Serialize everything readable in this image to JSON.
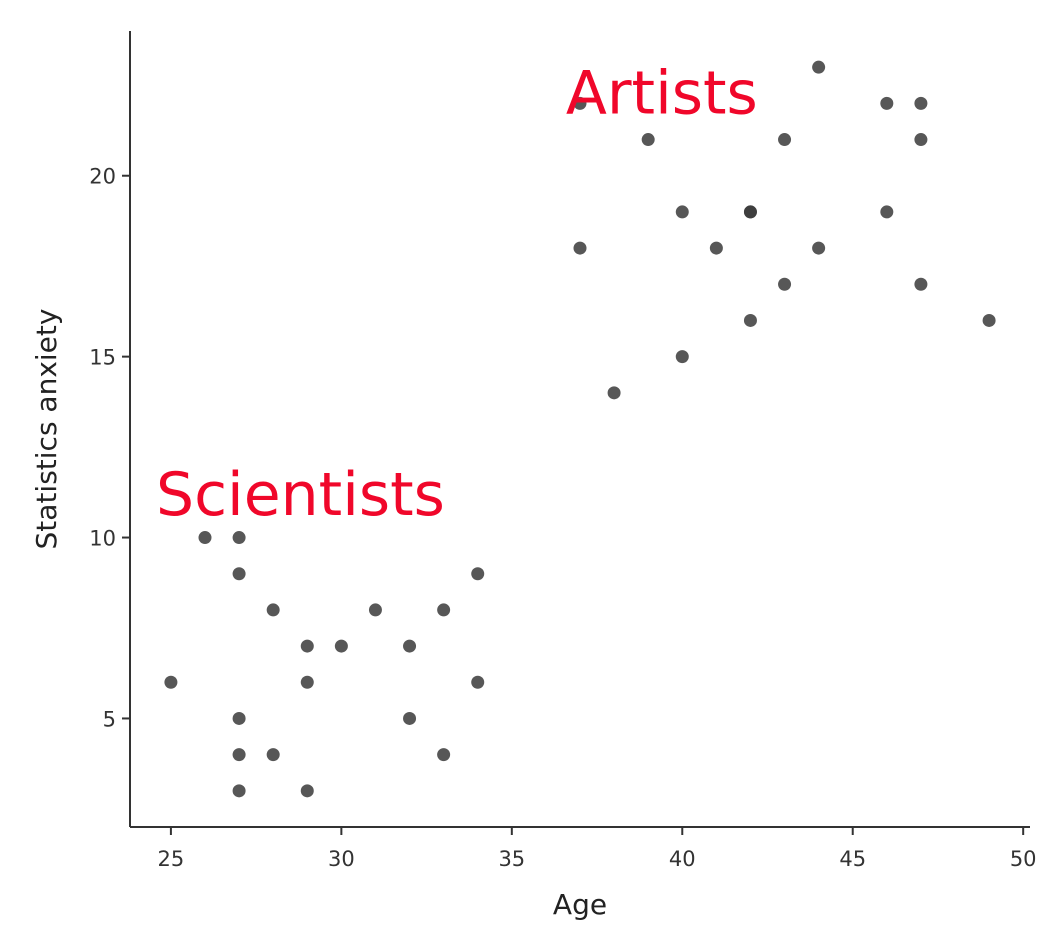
{
  "chart_data": {
    "type": "scatter",
    "xlabel": "Age",
    "ylabel": "Statistics anxiety",
    "xlim": [
      23.8,
      50.2
    ],
    "ylim": [
      2.0,
      24.0
    ],
    "x_ticks": [
      25,
      30,
      35,
      40,
      45,
      50
    ],
    "y_ticks": [
      5,
      10,
      15,
      20
    ],
    "grid": false,
    "point_color": "#3a3a3a",
    "annotation_color": "#f0072a",
    "annotations": [
      {
        "text": "Artists",
        "x": 39.4,
        "y": 22.3
      },
      {
        "text": "Scientists",
        "x": 28.8,
        "y": 11.2
      }
    ],
    "points": [
      {
        "x": 25,
        "y": 6
      },
      {
        "x": 26,
        "y": 10
      },
      {
        "x": 27,
        "y": 10
      },
      {
        "x": 27,
        "y": 9
      },
      {
        "x": 27,
        "y": 5
      },
      {
        "x": 27,
        "y": 4
      },
      {
        "x": 27,
        "y": 3
      },
      {
        "x": 28,
        "y": 8
      },
      {
        "x": 28,
        "y": 4
      },
      {
        "x": 29,
        "y": 7
      },
      {
        "x": 29,
        "y": 6
      },
      {
        "x": 29,
        "y": 3
      },
      {
        "x": 30,
        "y": 7
      },
      {
        "x": 31,
        "y": 8
      },
      {
        "x": 32,
        "y": 7
      },
      {
        "x": 32,
        "y": 5
      },
      {
        "x": 33,
        "y": 8
      },
      {
        "x": 33,
        "y": 4
      },
      {
        "x": 34,
        "y": 9
      },
      {
        "x": 34,
        "y": 6
      },
      {
        "x": 37,
        "y": 22
      },
      {
        "x": 37,
        "y": 18
      },
      {
        "x": 38,
        "y": 14
      },
      {
        "x": 39,
        "y": 21
      },
      {
        "x": 40,
        "y": 19
      },
      {
        "x": 40,
        "y": 15
      },
      {
        "x": 41,
        "y": 18
      },
      {
        "x": 42,
        "y": 19
      },
      {
        "x": 42,
        "y": 19
      },
      {
        "x": 42,
        "y": 16
      },
      {
        "x": 43,
        "y": 21
      },
      {
        "x": 43,
        "y": 17
      },
      {
        "x": 44,
        "y": 23
      },
      {
        "x": 44,
        "y": 18
      },
      {
        "x": 46,
        "y": 22
      },
      {
        "x": 46,
        "y": 19
      },
      {
        "x": 47,
        "y": 22
      },
      {
        "x": 47,
        "y": 21
      },
      {
        "x": 47,
        "y": 17
      },
      {
        "x": 49,
        "y": 16
      }
    ]
  }
}
